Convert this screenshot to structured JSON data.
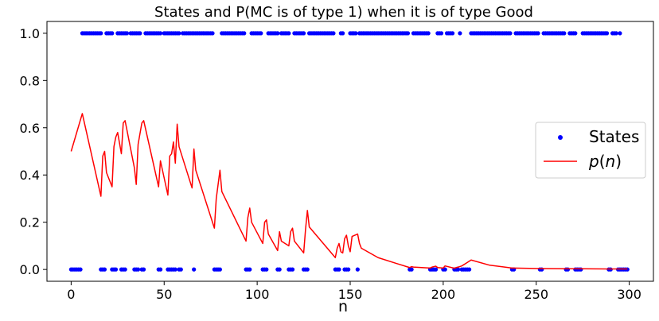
{
  "chart_data": {
    "type": "line",
    "title": "States and P(MC is of type 1) when it is of type Good",
    "xlabel": "n",
    "ylabel": "",
    "xlim": [
      -13,
      313
    ],
    "ylim": [
      -0.05,
      1.05
    ],
    "xticks": [
      0,
      50,
      100,
      150,
      200,
      250,
      300
    ],
    "yticks": [
      0.0,
      0.2,
      0.4,
      0.6,
      0.8,
      1.0
    ],
    "xtick_labels": [
      "0",
      "50",
      "100",
      "150",
      "200",
      "250",
      "300"
    ],
    "ytick_labels": [
      "0.0",
      "0.2",
      "0.4",
      "0.6",
      "0.8",
      "1.0"
    ],
    "legend_position": "center-right",
    "grid": false,
    "colors": {
      "states": "#0000ff",
      "p": "#ff0000"
    },
    "series": [
      {
        "name": "States",
        "style": "points",
        "ones": [
          6,
          7,
          8,
          9,
          10,
          11,
          12,
          13,
          14,
          15,
          16,
          19,
          20,
          21,
          22,
          25,
          26,
          27,
          28,
          29,
          30,
          32,
          33,
          34,
          35,
          36,
          37,
          40,
          41,
          42,
          43,
          44,
          45,
          46,
          47,
          48,
          50,
          51,
          52,
          53,
          54,
          55,
          56,
          57,
          58,
          60,
          61,
          62,
          63,
          64,
          65,
          66,
          67,
          68,
          69,
          70,
          71,
          72,
          73,
          74,
          75,
          76,
          81,
          82,
          83,
          84,
          85,
          86,
          87,
          88,
          89,
          90,
          91,
          92,
          93,
          97,
          98,
          99,
          100,
          101,
          102,
          106,
          107,
          108,
          109,
          110,
          111,
          113,
          114,
          115,
          116,
          117,
          120,
          121,
          122,
          123,
          124,
          125,
          128,
          129,
          130,
          131,
          132,
          133,
          134,
          135,
          136,
          137,
          138,
          139,
          140,
          141,
          145,
          146,
          150,
          151,
          152,
          153,
          155,
          156,
          157,
          158,
          159,
          160,
          161,
          162,
          163,
          164,
          165,
          166,
          167,
          168,
          169,
          170,
          171,
          172,
          173,
          174,
          175,
          176,
          177,
          178,
          179,
          180,
          181,
          184,
          185,
          186,
          187,
          188,
          189,
          190,
          191,
          192,
          197,
          198,
          199,
          202,
          203,
          204,
          205,
          209,
          215,
          216,
          217,
          218,
          219,
          220,
          221,
          222,
          223,
          224,
          225,
          226,
          227,
          228,
          229,
          230,
          231,
          232,
          233,
          234,
          235,
          236,
          239,
          240,
          241,
          242,
          243,
          244,
          245,
          246,
          247,
          248,
          249,
          250,
          251,
          254,
          255,
          256,
          257,
          258,
          259,
          260,
          261,
          262,
          263,
          264,
          265,
          268,
          269,
          270,
          271,
          275,
          276,
          277,
          278,
          279,
          280,
          281,
          282,
          283,
          284,
          285,
          286,
          287,
          288,
          291,
          292,
          293,
          295
        ],
        "zeros": [
          0,
          1,
          2,
          3,
          4,
          5,
          16,
          17,
          18,
          22,
          23,
          24,
          27,
          28,
          29,
          34,
          35,
          36,
          38,
          39,
          47,
          48,
          52,
          53,
          54,
          55,
          56,
          58,
          59,
          66,
          77,
          78,
          79,
          80,
          94,
          95,
          96,
          103,
          104,
          105,
          111,
          112,
          117,
          118,
          119,
          125,
          126,
          127,
          142,
          143,
          144,
          147,
          148,
          149,
          154,
          182,
          183,
          193,
          194,
          195,
          196,
          200,
          201,
          206,
          207,
          208,
          210,
          211,
          212,
          213,
          214,
          237,
          238,
          252,
          253,
          266,
          267,
          271,
          272,
          273,
          274,
          289,
          290,
          294,
          295,
          296,
          297,
          298,
          299
        ]
      },
      {
        "name": "p(n)",
        "style": "line",
        "x": [
          0,
          6,
          16,
          17,
          18,
          19,
          22,
          23,
          24,
          25,
          27,
          28,
          29,
          34,
          35,
          36,
          38,
          39,
          47,
          48,
          52,
          53,
          54,
          55,
          56,
          57,
          58,
          65,
          66,
          67,
          77,
          78,
          79,
          80,
          81,
          94,
          95,
          96,
          97,
          103,
          104,
          105,
          106,
          111,
          112,
          113,
          117,
          118,
          119,
          120,
          125,
          126,
          127,
          128,
          142,
          143,
          144,
          145,
          146,
          147,
          148,
          149,
          150,
          151,
          154,
          155,
          156,
          165,
          175,
          182,
          183,
          184,
          193,
          194,
          195,
          196,
          197,
          200,
          201,
          206,
          207,
          208,
          210,
          211,
          212,
          213,
          214,
          215,
          225,
          237,
          238,
          252,
          253,
          266,
          267,
          271,
          272,
          273,
          274,
          289,
          290,
          294,
          295,
          296,
          297,
          298,
          299
        ],
        "y": [
          0.5,
          0.66,
          0.31,
          0.48,
          0.5,
          0.41,
          0.35,
          0.52,
          0.56,
          0.58,
          0.49,
          0.62,
          0.63,
          0.43,
          0.36,
          0.53,
          0.62,
          0.63,
          0.35,
          0.46,
          0.315,
          0.48,
          0.49,
          0.54,
          0.45,
          0.615,
          0.52,
          0.345,
          0.51,
          0.42,
          0.175,
          0.3,
          0.36,
          0.42,
          0.33,
          0.12,
          0.22,
          0.26,
          0.2,
          0.11,
          0.2,
          0.21,
          0.15,
          0.08,
          0.16,
          0.12,
          0.1,
          0.16,
          0.175,
          0.12,
          0.07,
          0.17,
          0.25,
          0.18,
          0.05,
          0.09,
          0.11,
          0.075,
          0.07,
          0.13,
          0.145,
          0.1,
          0.075,
          0.14,
          0.15,
          0.11,
          0.09,
          0.05,
          0.025,
          0.008,
          0.012,
          0.01,
          0.006,
          0.01,
          0.012,
          0.014,
          0.008,
          0.006,
          0.015,
          0.005,
          0.008,
          0.01,
          0.015,
          0.02,
          0.025,
          0.03,
          0.035,
          0.04,
          0.018,
          0.006,
          0.006,
          0.004,
          0.004,
          0.003,
          0.003,
          0.003,
          0.003,
          0.003,
          0.003,
          0.002,
          0.002,
          0.002,
          0.002,
          0.002,
          0.002,
          0.002,
          0.002
        ]
      }
    ]
  }
}
